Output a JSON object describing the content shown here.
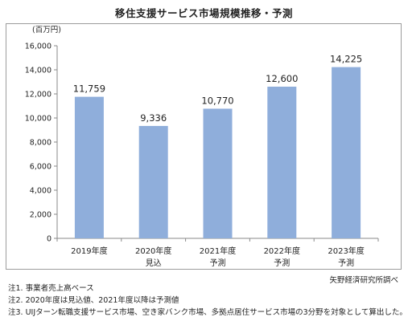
{
  "chart_data": {
    "type": "bar",
    "title": "移住支援サービス市場規模推移・予測",
    "unit_label": "(百万円)",
    "categories": [
      {
        "year": "2019年度",
        "sub": ""
      },
      {
        "year": "2020年度",
        "sub": "見込"
      },
      {
        "year": "2021年度",
        "sub": "予測"
      },
      {
        "year": "2022年度",
        "sub": "予測"
      },
      {
        "year": "2023年度",
        "sub": "予測"
      }
    ],
    "values": [
      11759,
      9336,
      10770,
      12600,
      14225
    ],
    "value_labels": [
      "11,759",
      "9,336",
      "10,770",
      "12,600",
      "14,225"
    ],
    "ylim": [
      0,
      16000
    ],
    "yticks": [
      {
        "value": 0,
        "label": "0"
      },
      {
        "value": 2000,
        "label": "2,000"
      },
      {
        "value": 4000,
        "label": "4,000"
      },
      {
        "value": 6000,
        "label": "6,000"
      },
      {
        "value": 8000,
        "label": "8,000"
      },
      {
        "value": 10000,
        "label": "10,000"
      },
      {
        "value": 12000,
        "label": "12,000"
      },
      {
        "value": 14000,
        "label": "14,000"
      },
      {
        "value": 16000,
        "label": "16,000"
      }
    ],
    "grid": false,
    "bar_color": "#8faedb"
  },
  "source": "矢野経済研究所調べ",
  "notes": [
    "注1. 事業者売上高ベース",
    "注2. 2020年度は見込値、2021年度以降は予測値",
    "注3. UIJターン転職支援サービス市場、空き家バンク市場、多拠点居住サービス市場の3分野を対象として算出した。"
  ]
}
